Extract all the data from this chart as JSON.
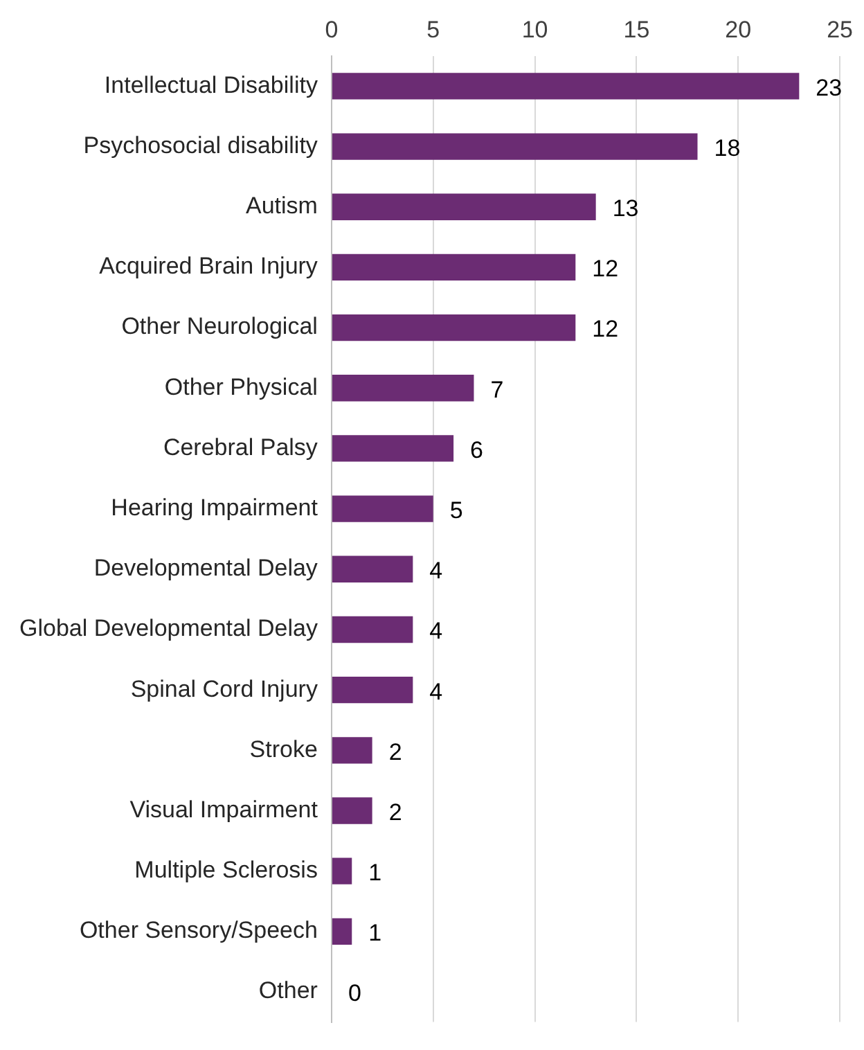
{
  "chart_data": {
    "type": "bar",
    "orientation": "horizontal",
    "categories": [
      "Intellectual Disability",
      "Psychosocial disability",
      "Autism",
      "Acquired Brain Injury",
      "Other Neurological",
      "Other Physical",
      "Cerebral Palsy",
      "Hearing Impairment",
      "Developmental Delay",
      "Global Developmental Delay",
      "Spinal Cord Injury",
      "Stroke",
      "Visual Impairment",
      "Multiple Sclerosis",
      "Other Sensory/Speech",
      "Other"
    ],
    "values": [
      23,
      18,
      13,
      12,
      12,
      7,
      6,
      5,
      4,
      4,
      4,
      2,
      2,
      1,
      1,
      0
    ],
    "color": "#6b2c73",
    "xlim": [
      0,
      25
    ],
    "xticks": [
      0,
      5,
      10,
      15,
      20,
      25
    ],
    "grid": "x",
    "data_labels": true,
    "legend": false
  }
}
